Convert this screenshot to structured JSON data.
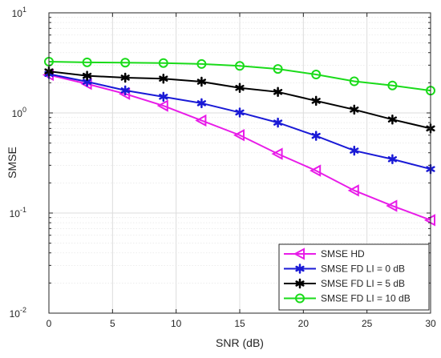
{
  "chart_data": {
    "type": "line",
    "xlabel": "SNR (dB)",
    "ylabel": "SMSE",
    "xlim": [
      0,
      30
    ],
    "ylim": [
      0.01,
      10
    ],
    "yscale": "log",
    "grid": true,
    "minor_grid": true,
    "legend_position": "bottom-right",
    "x_ticks": [
      0,
      5,
      10,
      15,
      20,
      25,
      30
    ],
    "y_ticks": [
      {
        "value": 0.01,
        "base": "10",
        "exp": "-2"
      },
      {
        "value": 0.1,
        "base": "10",
        "exp": "-1"
      },
      {
        "value": 1,
        "base": "10",
        "exp": "0"
      },
      {
        "value": 10,
        "base": "10",
        "exp": "1"
      }
    ],
    "series": [
      {
        "name": "SMSE HD",
        "color": "#e81ce8",
        "marker": "triangle-left",
        "x": [
          0,
          3,
          6,
          9,
          12,
          15,
          18,
          21,
          24,
          27,
          30
        ],
        "y": [
          2.4,
          1.95,
          1.55,
          1.18,
          0.84,
          0.6,
          0.39,
          0.265,
          0.168,
          0.118,
          0.085
        ]
      },
      {
        "name": "SMSE FD LI = 0 dB",
        "color": "#1a1ad6",
        "marker": "star",
        "x": [
          0,
          3,
          6,
          9,
          12,
          15,
          18,
          21,
          24,
          27,
          30
        ],
        "y": [
          2.45,
          2.05,
          1.68,
          1.45,
          1.25,
          1.01,
          0.8,
          0.59,
          0.42,
          0.345,
          0.275
        ]
      },
      {
        "name": "SMSE FD LI = 5 dB",
        "color": "#000000",
        "marker": "star",
        "x": [
          0,
          3,
          6,
          9,
          12,
          15,
          18,
          21,
          24,
          27,
          30
        ],
        "y": [
          2.6,
          2.35,
          2.25,
          2.2,
          2.05,
          1.78,
          1.62,
          1.32,
          1.08,
          0.86,
          0.7
        ]
      },
      {
        "name": "SMSE FD LI = 10 dB",
        "color": "#1adb1a",
        "marker": "circle",
        "x": [
          0,
          3,
          6,
          9,
          12,
          15,
          18,
          21,
          24,
          27,
          30
        ],
        "y": [
          3.25,
          3.2,
          3.18,
          3.15,
          3.08,
          2.95,
          2.75,
          2.42,
          2.07,
          1.88,
          1.67
        ]
      }
    ]
  }
}
